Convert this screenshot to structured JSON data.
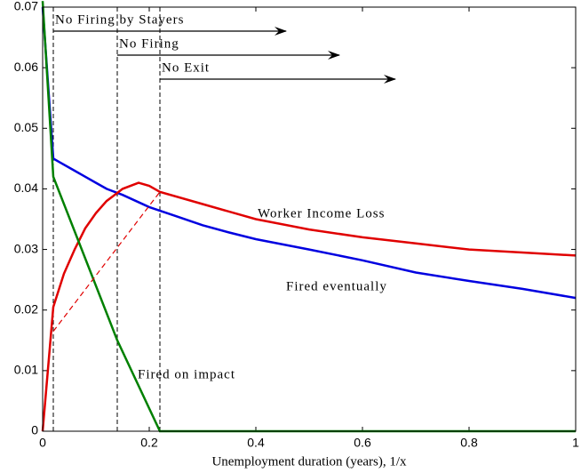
{
  "chart_data": {
    "type": "line",
    "xlabel": "Unemployment duration (years), 1/x",
    "xlim": [
      0,
      1
    ],
    "xticks": [
      0,
      0.2,
      0.4,
      0.6,
      0.8,
      1
    ],
    "ylim": [
      0,
      0.07
    ],
    "yticks": [
      0,
      0.01,
      0.02,
      0.03,
      0.04,
      0.05,
      0.06,
      0.07
    ],
    "series": [
      {
        "name": "Fired eventually",
        "color": "#0000e0",
        "x": [
          0,
          0.02,
          0.03,
          0.06,
          0.08,
          0.1,
          0.12,
          0.15,
          0.2,
          0.25,
          0.3,
          0.35,
          0.4,
          0.5,
          0.6,
          0.7,
          0.8,
          0.9,
          1
        ],
        "values": [
          0.07,
          0.045,
          0.0445,
          0.043,
          0.042,
          0.041,
          0.04,
          0.039,
          0.037,
          0.0355,
          0.034,
          0.0328,
          0.0317,
          0.03,
          0.0282,
          0.0262,
          0.0248,
          0.0235,
          0.022
        ]
      },
      {
        "name": "Worker Income Loss",
        "color": "#e00000",
        "x": [
          0,
          0.02,
          0.04,
          0.06,
          0.08,
          0.1,
          0.12,
          0.15,
          0.18,
          0.2,
          0.22,
          0.3,
          0.4,
          0.5,
          0.6,
          0.7,
          0.8,
          0.9,
          1
        ],
        "values": [
          0,
          0.0205,
          0.026,
          0.03,
          0.0335,
          0.036,
          0.038,
          0.04,
          0.041,
          0.0405,
          0.0395,
          0.0375,
          0.035,
          0.0333,
          0.032,
          0.031,
          0.03,
          0.0295,
          0.029
        ]
      },
      {
        "name": "Fired on impact",
        "color": "#008000",
        "x": [
          0,
          0.02,
          0.14,
          0.22,
          1
        ],
        "values": [
          0.071,
          0.042,
          0.015,
          0,
          0
        ]
      },
      {
        "color": "#e00000",
        "dashed": true,
        "x": [
          0.02,
          0.22
        ],
        "values": [
          0.0165,
          0.0395
        ]
      }
    ],
    "annotations": [
      {
        "text": "No Firing by Stayers",
        "x": 0.02
      },
      {
        "text": "No Firing",
        "x": 0.14
      },
      {
        "text": "No Exit",
        "x": 0.22
      }
    ]
  }
}
